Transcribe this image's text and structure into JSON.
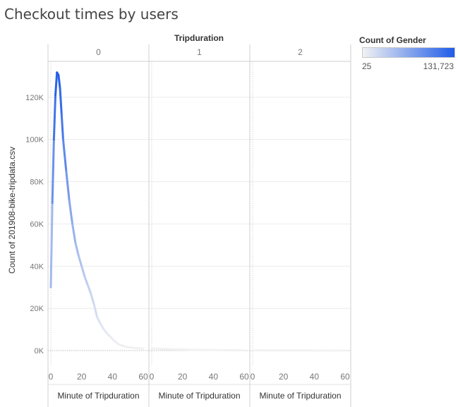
{
  "chart_data": {
    "type": "line",
    "title": "Checkout times by users",
    "facet_header": "Tripduration",
    "facets": [
      "0",
      "1",
      "2"
    ],
    "xlabel": "Minute of Tripduration",
    "ylabel": "Count of 201908-bike-tripdata.csv",
    "xlim": [
      0,
      60
    ],
    "x_ticks": [
      "0",
      "20",
      "40",
      "60"
    ],
    "ylim": [
      -7000,
      137000
    ],
    "y_ticks": [
      {
        "value": 0,
        "label": "0K"
      },
      {
        "value": 20000,
        "label": "20K"
      },
      {
        "value": 40000,
        "label": "40K"
      },
      {
        "value": 60000,
        "label": "60K"
      },
      {
        "value": 80000,
        "label": "80K"
      },
      {
        "value": 100000,
        "label": "100K"
      },
      {
        "value": 120000,
        "label": "120K"
      }
    ],
    "grid": true,
    "color_legend": {
      "title": "Count of Gender",
      "min": 25,
      "max": 131723,
      "min_label": "25",
      "max_label": "131,723",
      "color_low": "#f2f2f2",
      "color_high": "#1f5ce8"
    },
    "series": [
      {
        "facet": "0",
        "x": [
          0,
          1,
          2,
          3,
          4,
          5,
          6,
          7,
          8,
          10,
          12,
          14,
          16,
          18,
          20,
          22,
          24,
          26,
          28,
          30,
          32,
          34,
          36,
          38,
          40,
          42,
          44,
          46,
          48,
          50,
          55,
          60
        ],
        "values": [
          30000,
          70000,
          100000,
          121000,
          131723,
          130500,
          124000,
          112000,
          100000,
          85000,
          71000,
          60000,
          51000,
          45000,
          40000,
          35000,
          31000,
          27000,
          22000,
          16000,
          13000,
          10500,
          8500,
          7000,
          5500,
          4200,
          3000,
          2500,
          2000,
          1600,
          1200,
          900
        ]
      },
      {
        "facet": "1",
        "x": [
          0,
          5,
          10,
          20,
          30,
          40,
          50,
          60
        ],
        "values": [
          1000,
          900,
          700,
          500,
          300,
          250,
          200,
          150
        ]
      },
      {
        "facet": "2",
        "x": [
          0,
          10,
          20,
          30,
          40,
          50,
          60
        ],
        "values": [
          150,
          120,
          100,
          80,
          60,
          50,
          40
        ]
      }
    ]
  }
}
